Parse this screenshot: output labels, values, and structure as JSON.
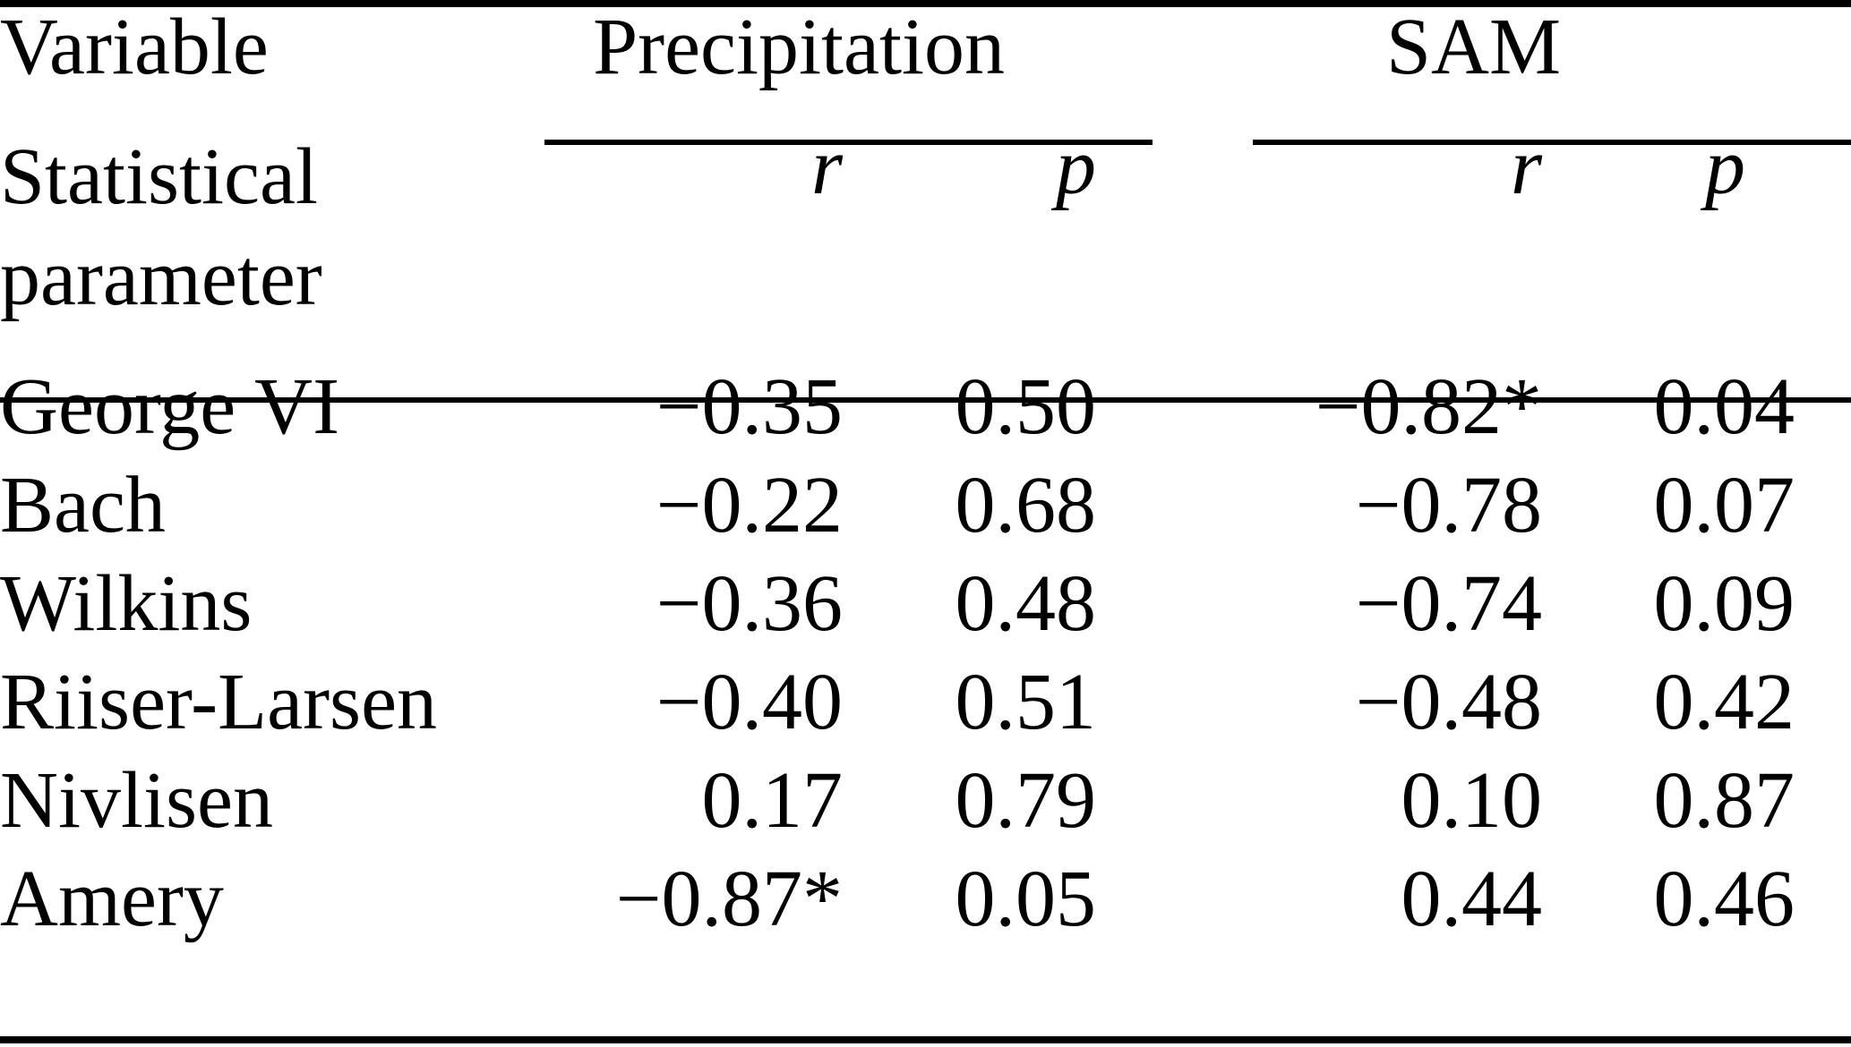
{
  "table": {
    "columns": {
      "variable_header": "Variable",
      "stat_param_header": "Statistical parameter",
      "groups": [
        {
          "label": "Precipitation",
          "subcols": [
            {
              "label": "r"
            },
            {
              "label": "p"
            }
          ]
        },
        {
          "label": "SAM",
          "subcols": [
            {
              "label": "r"
            },
            {
              "label": "p"
            }
          ]
        }
      ]
    },
    "rows": [
      {
        "variable": "George VI",
        "precip_r": "−0.35",
        "precip_p": "0.50",
        "sam_r": "−0.82*",
        "sam_p": "0.04"
      },
      {
        "variable": "Bach",
        "precip_r": "−0.22",
        "precip_p": "0.68",
        "sam_r": "−0.78",
        "sam_p": "0.07"
      },
      {
        "variable": "Wilkins",
        "precip_r": "−0.36",
        "precip_p": "0.48",
        "sam_r": "−0.74",
        "sam_p": "0.09"
      },
      {
        "variable": "Riiser-Larsen",
        "precip_r": "−0.40",
        "precip_p": "0.51",
        "sam_r": "−0.48",
        "sam_p": "0.42"
      },
      {
        "variable": "Nivlisen",
        "precip_r": "0.17",
        "precip_p": "0.79",
        "sam_r": "0.10",
        "sam_p": "0.87"
      },
      {
        "variable": "Amery",
        "precip_r": "−0.87*",
        "precip_p": "0.05",
        "sam_r": "0.44",
        "sam_p": "0.46"
      }
    ],
    "significance_marker": "*",
    "colors": {
      "text": "#000000",
      "background": "#ffffff",
      "rules": "#000000"
    }
  },
  "chart_data": {
    "type": "table",
    "title": "",
    "columns": [
      "Variable",
      "Precipitation r",
      "Precipitation p",
      "SAM r",
      "SAM p"
    ],
    "rows": [
      [
        "George VI",
        -0.35,
        0.5,
        -0.82,
        0.04
      ],
      [
        "Bach",
        -0.22,
        0.68,
        -0.78,
        0.07
      ],
      [
        "Wilkins",
        -0.36,
        0.48,
        -0.74,
        0.09
      ],
      [
        "Riiser-Larsen",
        -0.4,
        0.51,
        -0.48,
        0.42
      ],
      [
        "Nivlisen",
        0.17,
        0.79,
        0.1,
        0.87
      ],
      [
        "Amery",
        -0.87,
        0.05,
        0.44,
        0.46
      ]
    ],
    "starred_cells": [
      {
        "row": "George VI",
        "column": "SAM r",
        "display": "−0.82*"
      },
      {
        "row": "Amery",
        "column": "Precipitation r",
        "display": "−0.87*"
      }
    ]
  }
}
